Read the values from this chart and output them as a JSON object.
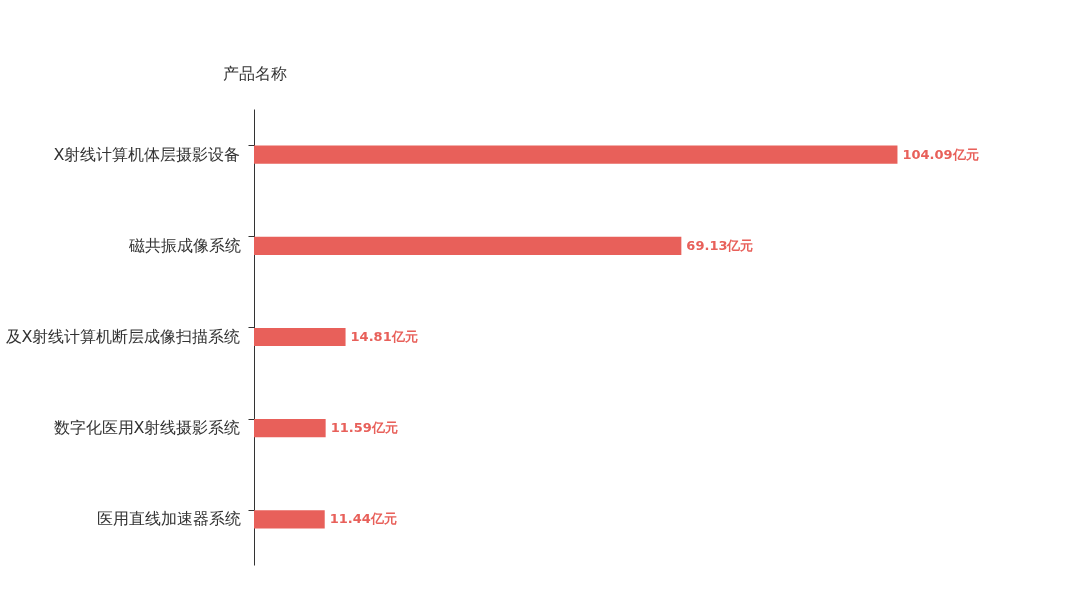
{
  "chart_data": {
    "type": "bar",
    "orientation": "horizontal",
    "ylabel": "产品名称",
    "categories": [
      "X射线计算机体层摄影设备",
      "磁共振成像系统",
      "及X射线计算机断层成像扫描系统",
      "数字化医用X射线摄影系统",
      "医用直线加速器系统"
    ],
    "series": [
      {
        "color": "#e8605a",
        "values": [
          104.09,
          69.13,
          14.81,
          11.59,
          11.44
        ],
        "value_labels": [
          "104.09亿元",
          "69.13亿元",
          "14.81亿元",
          "11.59亿元",
          "11.44亿元"
        ]
      }
    ],
    "legend": false
  }
}
